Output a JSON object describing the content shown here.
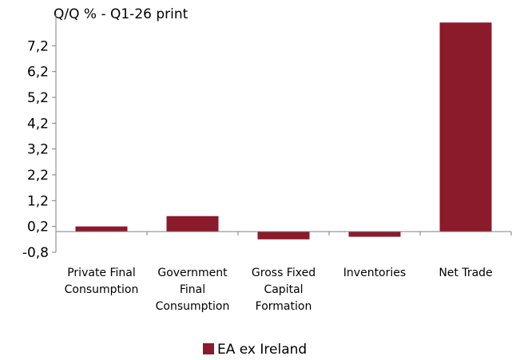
{
  "chart_data": {
    "type": "bar",
    "title": "Q/Q % - Q1-26 print",
    "xlabel": "",
    "ylabel": "",
    "categories": [
      [
        "Private Final",
        "Consumption"
      ],
      [
        "Government",
        "Final",
        "Consumption"
      ],
      [
        "Gross Fixed",
        "Capital",
        "Formation"
      ],
      [
        "Inventories"
      ],
      [
        "Net Trade"
      ]
    ],
    "series": [
      {
        "name": "EA ex Ireland",
        "color": "#8b1a2b",
        "values": [
          0.2,
          0.6,
          -0.3,
          -0.2,
          8.1
        ]
      }
    ],
    "yticks": [
      "-0,8",
      "0,2",
      "1,2",
      "2,2",
      "3,2",
      "4,2",
      "5,2",
      "6,2",
      "7,2"
    ],
    "ylim": [
      -0.8,
      8.2
    ],
    "grid": false,
    "legend_position": "bottom"
  }
}
